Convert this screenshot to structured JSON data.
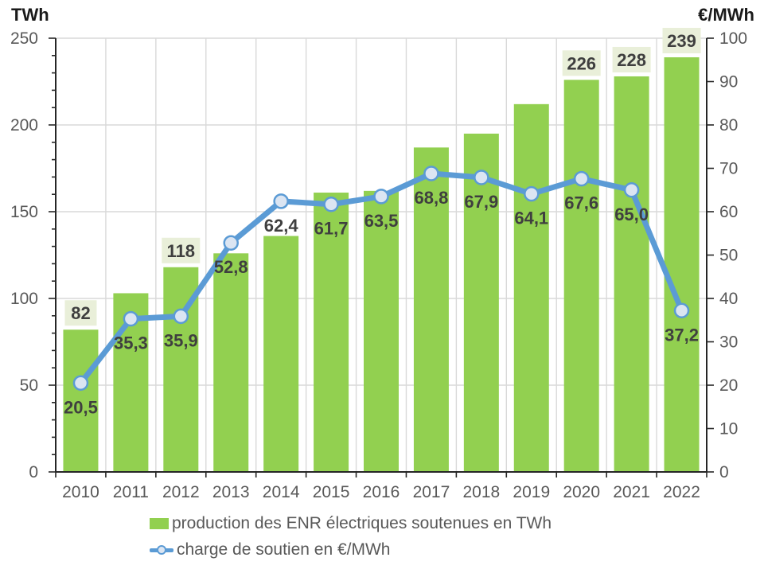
{
  "axes": {
    "left_title": "TWh",
    "right_title": "€/MWh",
    "left_ticks": [
      "0",
      "50",
      "100",
      "150",
      "200",
      "250"
    ],
    "right_ticks": [
      "0",
      "10",
      "20",
      "30",
      "40",
      "50",
      "60",
      "70",
      "80",
      "90",
      "100"
    ]
  },
  "legend": {
    "items": [
      {
        "label": "production des ENR électriques soutenues en TWh",
        "swatch": "bar"
      },
      {
        "label": "charge de soutien en €/MWh",
        "swatch": "line-marker"
      }
    ]
  },
  "colors": {
    "bar": "#92d050",
    "line": "#5b9bd5",
    "marker_fill": "#dbe5f2",
    "marker_stroke": "#5b9bd5",
    "bar_label_box": "#e9efd9",
    "data_label_text": "#3f3f3f",
    "tick_text": "#595959",
    "gridline": "#d9d9d9",
    "axis_line": "#262626"
  },
  "chart_data": {
    "type": "combo",
    "categories": [
      "2010",
      "2011",
      "2012",
      "2013",
      "2014",
      "2015",
      "2016",
      "2017",
      "2018",
      "2019",
      "2020",
      "2021",
      "2022"
    ],
    "series": [
      {
        "name": "production des ENR électriques soutenues en TWh",
        "type": "bar",
        "axis": "left",
        "values": [
          82,
          103,
          118,
          126,
          136,
          161,
          162,
          187,
          195,
          212,
          226,
          228,
          239
        ],
        "data_labels": [
          "82",
          null,
          "118",
          null,
          null,
          null,
          null,
          null,
          null,
          null,
          "226",
          "228",
          "239"
        ]
      },
      {
        "name": "charge de soutien en €/MWh",
        "type": "line",
        "axis": "right",
        "values": [
          20.5,
          35.3,
          35.9,
          52.8,
          62.4,
          61.7,
          63.5,
          68.8,
          67.9,
          64.1,
          67.6,
          65.0,
          37.2
        ],
        "data_labels": [
          "20,5",
          "35,3",
          "35,9",
          "52,8",
          "62,4",
          "61,7",
          "63,5",
          "68,8",
          "67,9",
          "64,1",
          "67,6",
          "65,0",
          "37,2"
        ]
      }
    ],
    "left_axis": {
      "title": "TWh",
      "min": 0,
      "max": 250,
      "major": 50,
      "minor": 10
    },
    "right_axis": {
      "title": "€/MWh",
      "min": 0,
      "max": 100,
      "major": 10
    },
    "grid": {
      "horizontal": true,
      "vertical": true
    },
    "legend_position": "bottom"
  }
}
